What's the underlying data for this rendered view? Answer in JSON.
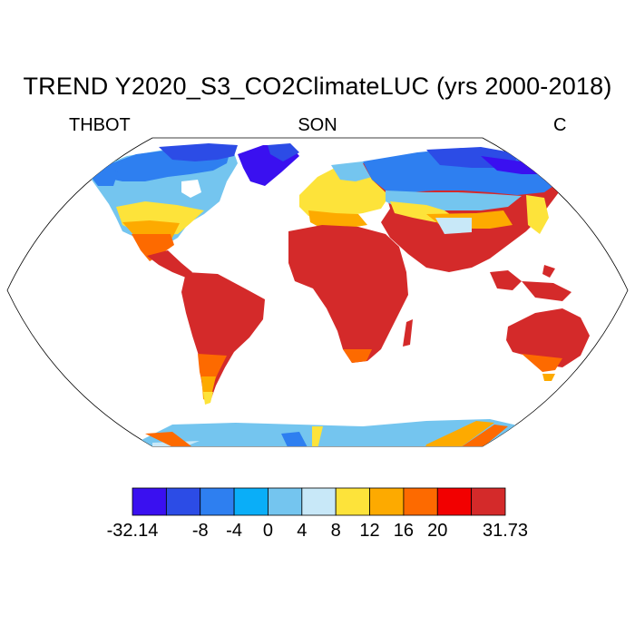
{
  "map": {
    "title": "TREND Y2020_S3_CO2ClimateLUC (yrs 2000-2018)",
    "variable": "THBOT",
    "season": "SON",
    "units": "C",
    "projection": "Robinson",
    "legend": {
      "colors": [
        "#3a10f0",
        "#2c4ce6",
        "#2e7ff0",
        "#0aaef8",
        "#74c5ef",
        "#c8e8f8",
        "#fde33a",
        "#fdaa00",
        "#fd6a00",
        "#f20000",
        "#d42a2a"
      ],
      "labels": [
        {
          "text": "-32.14",
          "edge": 0
        },
        {
          "text": "-8",
          "edge": 2
        },
        {
          "text": "-4",
          "edge": 3
        },
        {
          "text": "0",
          "edge": 4
        },
        {
          "text": "4",
          "edge": 5
        },
        {
          "text": "8",
          "edge": 6
        },
        {
          "text": "12",
          "edge": 7
        },
        {
          "text": "16",
          "edge": 8
        },
        {
          "text": "20",
          "edge": 9
        },
        {
          "text": "31.73",
          "edge": 11
        }
      ]
    }
  }
}
